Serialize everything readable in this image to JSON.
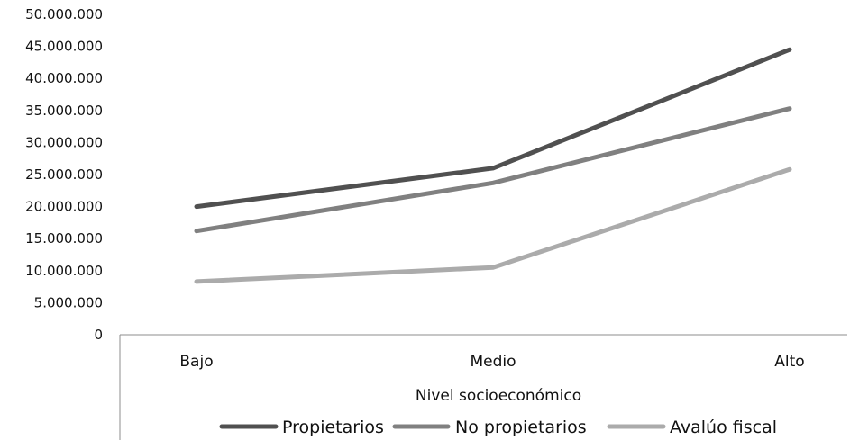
{
  "chart_data": {
    "type": "line",
    "categories": [
      "Bajo",
      "Medio",
      "Alto"
    ],
    "series": [
      {
        "name": "Propietarios",
        "values": [
          20000000,
          26000000,
          44500000
        ],
        "color": "#505050"
      },
      {
        "name": "No propietarios",
        "values": [
          16200000,
          23700000,
          35300000
        ],
        "color": "#808080"
      },
      {
        "name": "Avalúo fiscal",
        "values": [
          8300000,
          10500000,
          25800000
        ],
        "color": "#ababab"
      }
    ],
    "yticks": [
      "0",
      "5.000.000",
      "10.000.000",
      "15.000.000",
      "20.000.000",
      "25.000.000",
      "30.000.000",
      "35.000.000",
      "40.000.000",
      "45.000.000",
      "50.000.000"
    ],
    "ylim": [
      0,
      50000000
    ],
    "xlabel": "Nivel socioeconómico",
    "ylabel": "",
    "grid": false,
    "legend_position": "bottom"
  }
}
